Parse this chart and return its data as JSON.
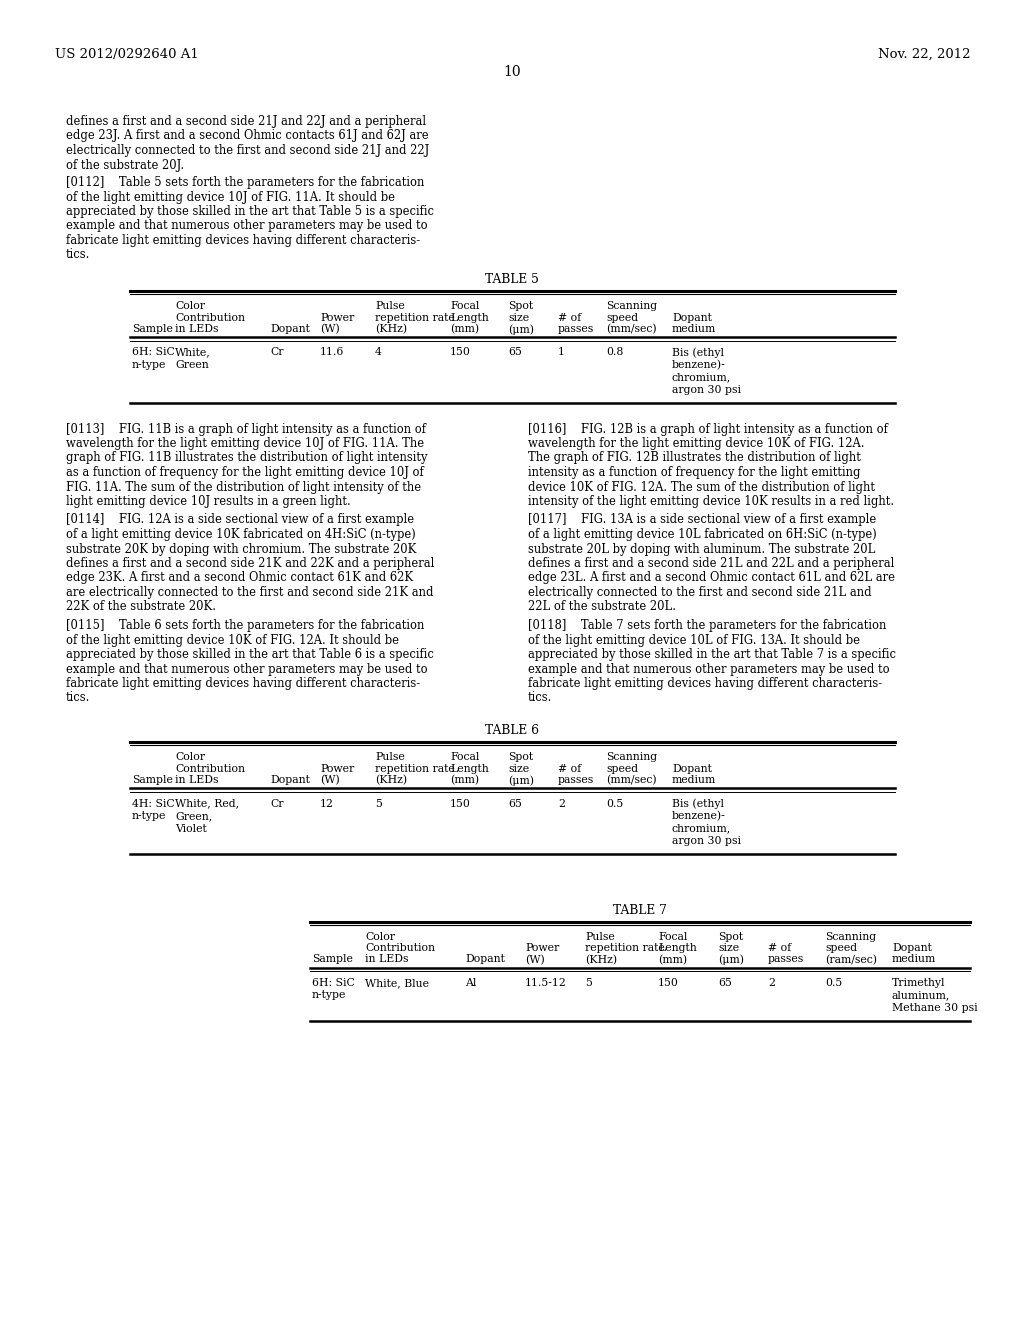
{
  "header_left": "US 2012/0292640 A1",
  "header_right": "Nov. 22, 2012",
  "page_number": "10",
  "bg_color": "#ffffff",
  "text_color": "#000000",
  "font_family": "DejaVu Serif",
  "para_intro": "defines a first and a second side 21J and 22J and a peripheral\nedge 23J. A first and a second Ohmic contacts 61J and 62J are\nelectrically connected to the first and second side 21J and 22J\nof the substrate 20J.",
  "para_0112": "[0112]    Table 5 sets forth the parameters for the fabrication\nof the light emitting device 10J of FIG. 11A. It should be\nappreciated by those skilled in the art that Table 5 is a specific\nexample and that numerous other parameters may be used to\nfabricate light emitting devices having different characteris-\ntics.",
  "table5_title": "TABLE 5",
  "para_0113": "[0113]    FIG. 11B is a graph of light intensity as a function of\nwavelength for the light emitting device 10J of FIG. 11A. The\ngraph of FIG. 11B illustrates the distribution of light intensity\nas a function of frequency for the light emitting device 10J of\nFIG. 11A. The sum of the distribution of light intensity of the\nlight emitting device 10J results in a green light.",
  "para_0114": "[0114]    FIG. 12A is a side sectional view of a first example\nof a light emitting device 10K fabricated on 4H:SiC (n-type)\nsubstrate 20K by doping with chromium. The substrate 20K\ndefines a first and a second side 21K and 22K and a peripheral\nedge 23K. A first and a second Ohmic contact 61K and 62K\nare electrically connected to the first and second side 21K and\n22K of the substrate 20K.",
  "para_0115": "[0115]    Table 6 sets forth the parameters for the fabrication\nof the light emitting device 10K of FIG. 12A. It should be\nappreciated by those skilled in the art that Table 6 is a specific\nexample and that numerous other parameters may be used to\nfabricate light emitting devices having different characteris-\ntics.",
  "para_0116": "[0116]    FIG. 12B is a graph of light intensity as a function of\nwavelength for the light emitting device 10K of FIG. 12A.\nThe graph of FIG. 12B illustrates the distribution of light\nintensity as a function of frequency for the light emitting\ndevice 10K of FIG. 12A. The sum of the distribution of light\nintensity of the light emitting device 10K results in a red light.",
  "para_0117": "[0117]    FIG. 13A is a side sectional view of a first example\nof a light emitting device 10L fabricated on 6H:SiC (n-type)\nsubstrate 20L by doping with aluminum. The substrate 20L\ndefines a first and a second side 21L and 22L and a peripheral\nedge 23L. A first and a second Ohmic contact 61L and 62L are\nelectrically connected to the first and second side 21L and\n22L of the substrate 20L.",
  "para_0118": "[0118]    Table 7 sets forth the parameters for the fabrication\nof the light emitting device 10L of FIG. 13A. It should be\nappreciated by those skilled in the art that Table 7 is a specific\nexample and that numerous other parameters may be used to\nfabricate light emitting devices having different characteris-\ntics.",
  "table6_title": "TABLE 6",
  "table7_title": "TABLE 7",
  "table5_row1_sample": "6H: SiC",
  "table5_row1_sample2": "n-type",
  "table5_row1_color": "White,",
  "table5_row1_color2": "Green",
  "table5_row1_dopant": "Cr",
  "table5_row1_power": "11.6",
  "table5_row1_pulse": "4",
  "table5_row1_focal": "150",
  "table5_row1_spot": "65",
  "table5_row1_passes": "1",
  "table5_row1_speed": "0.8",
  "table5_row1_dopant_med": "Bis (ethyl",
  "table5_row1_dopant_med2": "benzene)-",
  "table5_row1_dopant_med3": "chromium,",
  "table5_row1_dopant_med4": "argon 30 psi",
  "table6_row1_sample": "4H: SiC",
  "table6_row1_sample2": "n-type",
  "table6_row1_color": "White, Red,",
  "table6_row1_color2": "Green,",
  "table6_row1_color3": "Violet",
  "table6_row1_dopant": "Cr",
  "table6_row1_power": "12",
  "table6_row1_pulse": "5",
  "table6_row1_focal": "150",
  "table6_row1_spot": "65",
  "table6_row1_passes": "2",
  "table6_row1_speed": "0.5",
  "table6_row1_dopant_med": "Bis (ethyl",
  "table6_row1_dopant_med2": "benzene)-",
  "table6_row1_dopant_med3": "chromium,",
  "table6_row1_dopant_med4": "argon 30 psi",
  "table7_row1_sample": "6H: SiC",
  "table7_row1_sample2": "n-type",
  "table7_row1_color": "White, Blue",
  "table7_row1_dopant": "Al",
  "table7_row1_power": "11.5-12",
  "table7_row1_pulse": "5",
  "table7_row1_focal": "150",
  "table7_row1_spot": "65",
  "table7_row1_passes": "2",
  "table7_row1_speed": "0.5",
  "table7_row1_dopant_med": "Trimethyl",
  "table7_row1_dopant_med2": "aluminum,",
  "table7_row1_dopant_med3": "Methane 30 psi"
}
